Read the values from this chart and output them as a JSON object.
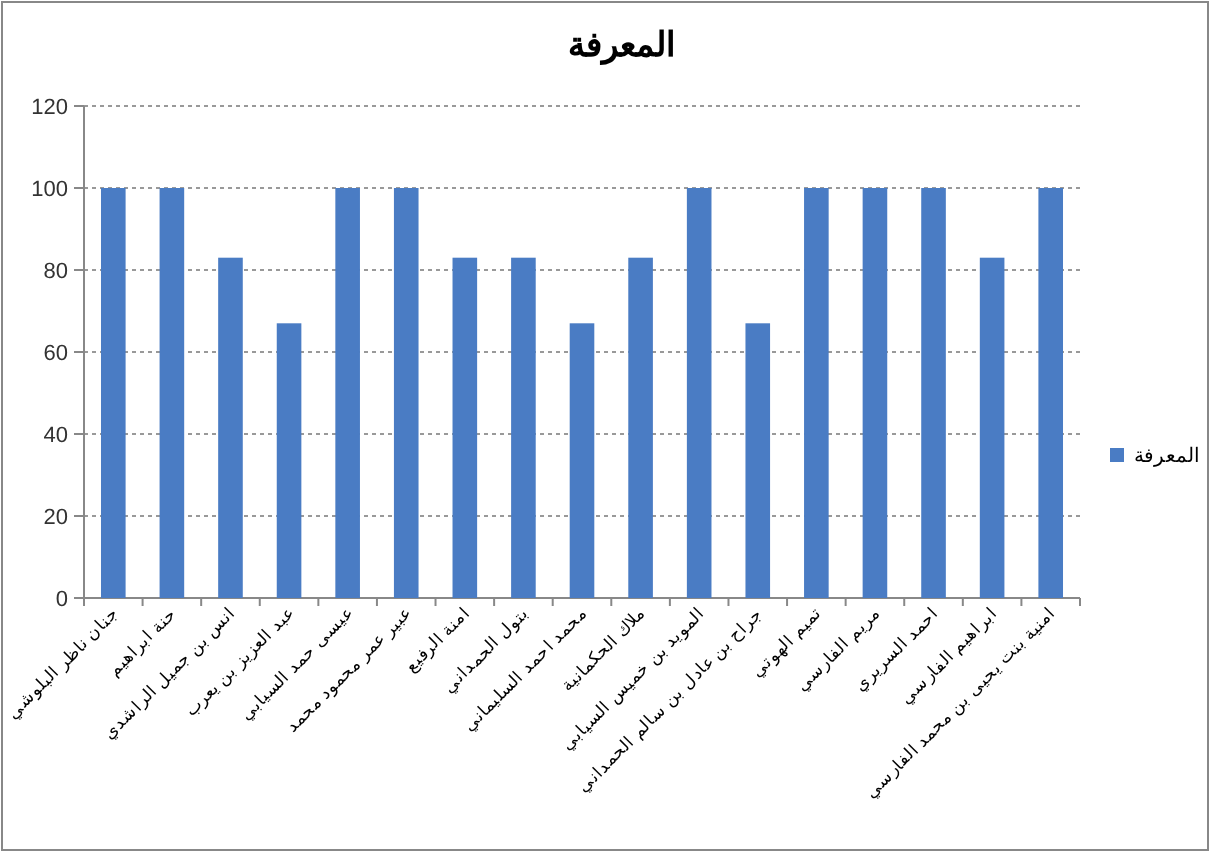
{
  "chart_data": {
    "type": "bar",
    "title": "المعرفة",
    "categories": [
      "جنان ناظر البلوشي",
      "حنة ابراهيم",
      "انس بن جميل الراشدي",
      "عبد العزيز بن يعرب",
      "عيسى حمد السيابي",
      "عبير عمر محمود محمد",
      "امنة الرفيع",
      "بتول الحمداني",
      "محمد احمد السليماني",
      "ملاك الحكمانية",
      "المويد بن خميس السيابي",
      "جراح بن عادل بن سالم الحمداني",
      "تميم الهوتي",
      "مريم الفارسي",
      "احمد السريري",
      "ابراهيم الفارسي",
      "امنية بنت يحيى بن محمد الفارسي"
    ],
    "series": [
      {
        "name": "المعرفة",
        "color": "#4a7cc4",
        "values": [
          100,
          100,
          83,
          67,
          100,
          100,
          83,
          83,
          67,
          83,
          100,
          67,
          100,
          100,
          100,
          83,
          100
        ]
      }
    ],
    "ylim": [
      0,
      120
    ],
    "yticks": [
      0,
      20,
      40,
      60,
      80,
      100,
      120
    ],
    "grid": "y",
    "legend": "right"
  }
}
